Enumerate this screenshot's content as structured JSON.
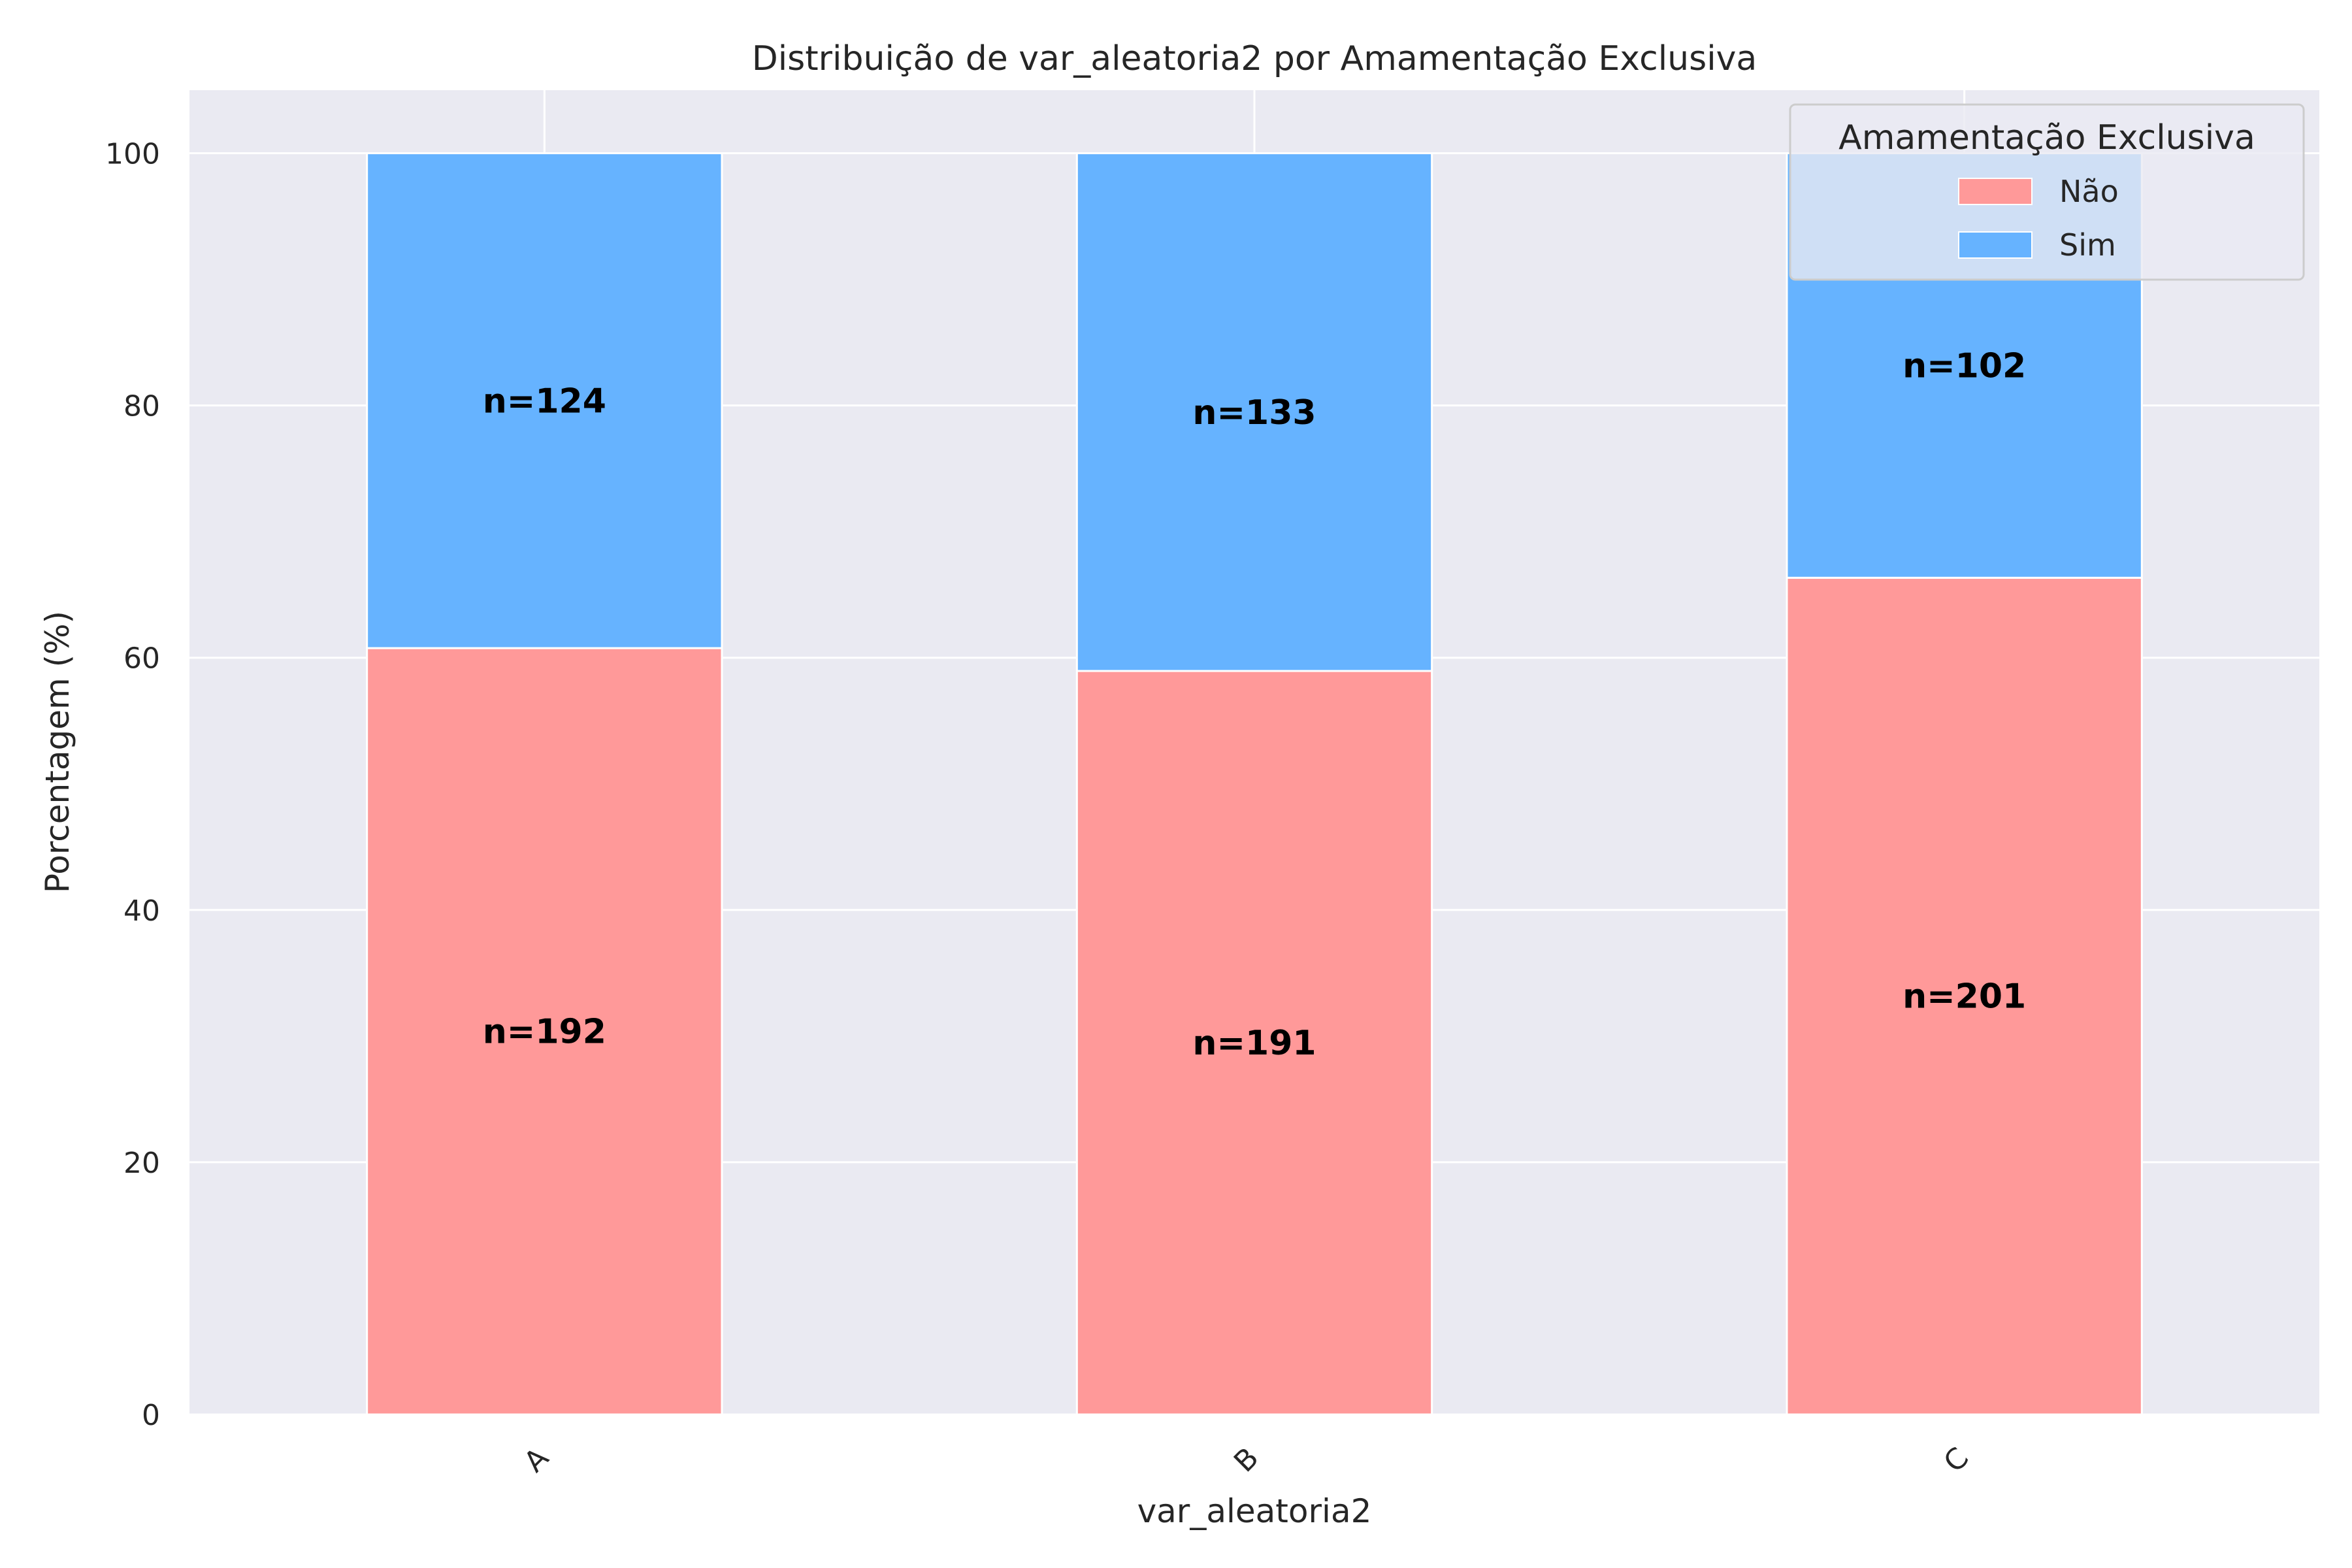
{
  "chart_data": {
    "type": "bar",
    "stacked": true,
    "title": "Distribuição de var_aleatoria2 por Amamentação Exclusiva",
    "xlabel": "var_aleatoria2",
    "ylabel": "Porcentagem (%)",
    "categories": [
      "A",
      "B",
      "C"
    ],
    "ylim": [
      0,
      105
    ],
    "yticks": [
      0,
      20,
      40,
      60,
      80,
      100
    ],
    "grid": true,
    "legend": {
      "title": "Amamentação Exclusiva",
      "placement": "top-right"
    },
    "series": [
      {
        "name": "Não",
        "color": "#ff9999",
        "values": [
          60.76,
          58.95,
          66.34
        ],
        "labels": [
          "n=192",
          "n=191",
          "n=201"
        ]
      },
      {
        "name": "Sim",
        "color": "#66b3ff",
        "values": [
          39.24,
          41.05,
          33.66
        ],
        "labels": [
          "n=124",
          "n=133",
          "n=102"
        ]
      }
    ],
    "colors": {
      "plot_background": "#eaeaf2",
      "grid": "#ffffff"
    }
  }
}
